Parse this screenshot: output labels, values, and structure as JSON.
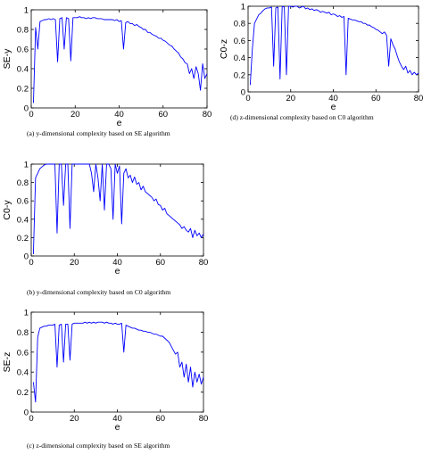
{
  "captions": {
    "a": "(a) y-dimensional complexity based on SE algorithm",
    "b": "(b) y-dimensional complexity based on C0 algorithm",
    "c": "(c) z-dimensional complexity based on SE algorithm",
    "d": "(d) z-dimensional complexity based on C0 algorithm"
  },
  "colors": {
    "series": "#0000ff",
    "axis": "#000000"
  },
  "chart_data": [
    {
      "id": "a",
      "type": "line",
      "xlabel": "e",
      "ylabel": "SE-y",
      "xlim": [
        0,
        80
      ],
      "ylim": [
        0,
        1
      ],
      "xticks": [
        "0",
        "20",
        "40",
        "60",
        "80"
      ],
      "yticks": [
        "0",
        "0.2",
        "0.4",
        "0.6",
        "0.8",
        "1"
      ],
      "x": [
        1,
        2,
        3,
        4,
        5,
        6,
        7,
        8,
        9,
        10,
        11,
        12,
        13,
        14,
        15,
        16,
        17,
        18,
        19,
        20,
        21,
        22,
        23,
        24,
        25,
        26,
        27,
        28,
        29,
        30,
        31,
        32,
        33,
        34,
        35,
        36,
        37,
        38,
        39,
        40,
        41,
        42,
        43,
        44,
        45,
        46,
        47,
        48,
        49,
        50,
        51,
        52,
        53,
        54,
        55,
        56,
        57,
        58,
        59,
        60,
        61,
        62,
        63,
        64,
        65,
        66,
        67,
        68,
        69,
        70,
        71,
        72,
        73,
        74,
        75,
        76,
        77,
        78,
        79,
        80
      ],
      "y": [
        0.05,
        0.82,
        0.6,
        0.88,
        0.89,
        0.9,
        0.9,
        0.91,
        0.9,
        0.91,
        0.9,
        0.47,
        0.91,
        0.92,
        0.6,
        0.92,
        0.91,
        0.48,
        0.92,
        0.92,
        0.92,
        0.93,
        0.92,
        0.92,
        0.91,
        0.92,
        0.91,
        0.92,
        0.92,
        0.91,
        0.91,
        0.91,
        0.9,
        0.9,
        0.9,
        0.9,
        0.9,
        0.89,
        0.9,
        0.88,
        0.89,
        0.6,
        0.87,
        0.88,
        0.86,
        0.86,
        0.84,
        0.85,
        0.83,
        0.82,
        0.8,
        0.8,
        0.77,
        0.77,
        0.75,
        0.74,
        0.73,
        0.71,
        0.71,
        0.69,
        0.68,
        0.66,
        0.64,
        0.63,
        0.6,
        0.58,
        0.56,
        0.52,
        0.5,
        0.46,
        0.45,
        0.35,
        0.4,
        0.3,
        0.42,
        0.35,
        0.18,
        0.45,
        0.3,
        0.35
      ]
    },
    {
      "id": "b",
      "type": "line",
      "xlabel": "e",
      "ylabel": "C0-y",
      "xlim": [
        0,
        80
      ],
      "ylim": [
        0,
        1
      ],
      "xticks": [
        "0",
        "20",
        "40",
        "60",
        "80"
      ],
      "yticks": [
        "0",
        "0.2",
        "0.4",
        "0.6",
        "0.8",
        "1"
      ],
      "x": [
        1,
        2,
        3,
        4,
        5,
        6,
        7,
        8,
        9,
        10,
        11,
        12,
        13,
        14,
        15,
        16,
        17,
        18,
        19,
        20,
        21,
        22,
        23,
        24,
        25,
        26,
        27,
        28,
        29,
        30,
        31,
        32,
        33,
        34,
        35,
        36,
        37,
        38,
        39,
        40,
        41,
        42,
        43,
        44,
        45,
        46,
        47,
        48,
        49,
        50,
        51,
        52,
        53,
        54,
        55,
        56,
        57,
        58,
        59,
        60,
        61,
        62,
        63,
        64,
        65,
        66,
        67,
        68,
        69,
        70,
        71,
        72,
        73,
        74,
        75,
        76,
        77,
        78,
        79,
        80
      ],
      "y": [
        0.02,
        0.85,
        0.9,
        0.95,
        0.97,
        0.99,
        1,
        1,
        1,
        1,
        1,
        0.25,
        1,
        1,
        0.55,
        1,
        1,
        0.3,
        1,
        1,
        1,
        1,
        1,
        1,
        1,
        1,
        1,
        0.9,
        0.7,
        1,
        0.85,
        0.6,
        1,
        0.5,
        1,
        1,
        0.95,
        0.4,
        1,
        0.9,
        0.98,
        0.35,
        0.9,
        0.95,
        0.85,
        0.88,
        0.8,
        0.86,
        0.78,
        0.8,
        0.72,
        0.76,
        0.7,
        0.68,
        0.66,
        0.64,
        0.6,
        0.62,
        0.56,
        0.55,
        0.5,
        0.52,
        0.46,
        0.44,
        0.42,
        0.4,
        0.38,
        0.36,
        0.34,
        0.3,
        0.32,
        0.28,
        0.26,
        0.3,
        0.2,
        0.28,
        0.22,
        0.25,
        0.2,
        0.24
      ]
    },
    {
      "id": "c",
      "type": "line",
      "xlabel": "e",
      "ylabel": "SE-z",
      "xlim": [
        0,
        80
      ],
      "ylim": [
        0,
        1
      ],
      "xticks": [
        "0",
        "20",
        "40",
        "60",
        "80"
      ],
      "yticks": [
        "0",
        "0.2",
        "0.4",
        "0.6",
        "0.8",
        "1"
      ],
      "x": [
        1,
        2,
        3,
        4,
        5,
        6,
        7,
        8,
        9,
        10,
        11,
        12,
        13,
        14,
        15,
        16,
        17,
        18,
        19,
        20,
        21,
        22,
        23,
        24,
        25,
        26,
        27,
        28,
        29,
        30,
        31,
        32,
        33,
        34,
        35,
        36,
        37,
        38,
        39,
        40,
        41,
        42,
        43,
        44,
        45,
        46,
        47,
        48,
        49,
        50,
        51,
        52,
        53,
        54,
        55,
        56,
        57,
        58,
        59,
        60,
        61,
        62,
        63,
        64,
        65,
        66,
        67,
        68,
        69,
        70,
        71,
        72,
        73,
        74,
        75,
        76,
        77,
        78,
        79,
        80
      ],
      "y": [
        0.3,
        0.1,
        0.75,
        0.84,
        0.85,
        0.86,
        0.86,
        0.87,
        0.87,
        0.87,
        0.88,
        0.45,
        0.87,
        0.88,
        0.5,
        0.88,
        0.88,
        0.52,
        0.88,
        0.89,
        0.89,
        0.89,
        0.89,
        0.89,
        0.9,
        0.89,
        0.9,
        0.89,
        0.9,
        0.89,
        0.9,
        0.9,
        0.9,
        0.89,
        0.9,
        0.89,
        0.89,
        0.88,
        0.89,
        0.88,
        0.88,
        0.89,
        0.6,
        0.87,
        0.86,
        0.85,
        0.84,
        0.84,
        0.83,
        0.82,
        0.82,
        0.81,
        0.81,
        0.8,
        0.8,
        0.79,
        0.78,
        0.78,
        0.77,
        0.76,
        0.76,
        0.74,
        0.72,
        0.7,
        0.66,
        0.62,
        0.58,
        0.6,
        0.45,
        0.5,
        0.35,
        0.48,
        0.3,
        0.45,
        0.25,
        0.4,
        0.3,
        0.38,
        0.28,
        0.35
      ]
    },
    {
      "id": "d",
      "type": "line",
      "xlabel": "e",
      "ylabel": "C0-z",
      "xlim": [
        0,
        80
      ],
      "ylim": [
        0,
        1
      ],
      "xticks": [
        "0",
        "20",
        "40",
        "60",
        "80"
      ],
      "yticks": [
        "0",
        "0.2",
        "0.4",
        "0.6",
        "0.8",
        "1"
      ],
      "x": [
        1,
        2,
        3,
        4,
        5,
        6,
        7,
        8,
        9,
        10,
        11,
        12,
        13,
        14,
        15,
        16,
        17,
        18,
        19,
        20,
        21,
        22,
        23,
        24,
        25,
        26,
        27,
        28,
        29,
        30,
        31,
        32,
        33,
        34,
        35,
        36,
        37,
        38,
        39,
        40,
        41,
        42,
        43,
        44,
        45,
        46,
        47,
        48,
        49,
        50,
        51,
        52,
        53,
        54,
        55,
        56,
        57,
        58,
        59,
        60,
        61,
        62,
        63,
        64,
        65,
        66,
        67,
        68,
        69,
        70,
        71,
        72,
        73,
        74,
        75,
        76,
        77,
        78,
        79,
        80
      ],
      "y": [
        0.08,
        0.5,
        0.8,
        0.85,
        0.9,
        0.92,
        0.95,
        0.97,
        0.98,
        0.98,
        0.99,
        0.3,
        0.98,
        0.99,
        0.15,
        1,
        0.99,
        0.2,
        1,
        1,
        0.99,
        1,
        1,
        0.98,
        0.99,
        1,
        0.97,
        0.98,
        0.96,
        0.97,
        0.95,
        0.96,
        0.95,
        0.93,
        0.94,
        0.93,
        0.92,
        0.93,
        0.9,
        0.91,
        0.9,
        0.88,
        0.89,
        0.87,
        0.88,
        0.2,
        0.86,
        0.85,
        0.84,
        0.84,
        0.83,
        0.82,
        0.82,
        0.8,
        0.8,
        0.78,
        0.78,
        0.76,
        0.75,
        0.73,
        0.72,
        0.7,
        0.68,
        0.7,
        0.66,
        0.3,
        0.62,
        0.55,
        0.5,
        0.42,
        0.35,
        0.3,
        0.26,
        0.3,
        0.22,
        0.25,
        0.2,
        0.23,
        0.2,
        0.22
      ]
    }
  ]
}
